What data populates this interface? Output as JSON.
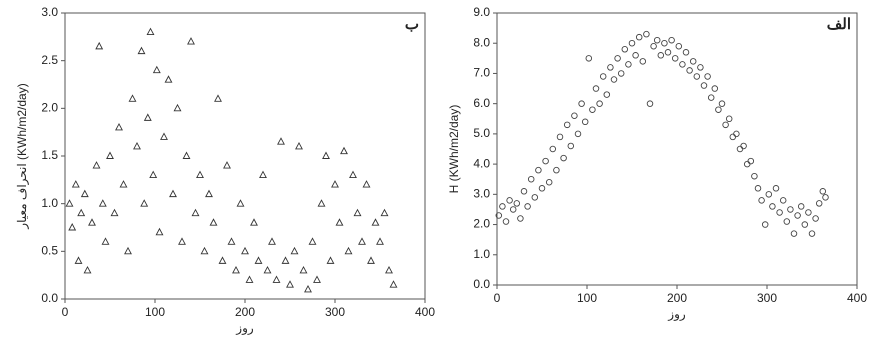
{
  "chart_data": [
    {
      "type": "scatter",
      "title": "ب",
      "x_label": "روز",
      "y_label": "انحراف معیار (KWh/m2/day)",
      "marker": "triangle",
      "color": "#333333",
      "xlim": [
        0,
        400
      ],
      "ylim": [
        0,
        3.0
      ],
      "xticks": [
        0,
        100,
        200,
        300,
        400
      ],
      "yticks": [
        {
          "value": 0,
          "label": "0.0"
        },
        0.5,
        {
          "value": 1,
          "label": "1.0"
        },
        1.5,
        {
          "value": 2,
          "label": "2.0"
        },
        2.5,
        {
          "value": 3,
          "label": "3.0"
        }
      ],
      "x": [
        5,
        8,
        12,
        15,
        18,
        22,
        25,
        30,
        35,
        38,
        42,
        45,
        50,
        55,
        60,
        65,
        70,
        75,
        80,
        85,
        88,
        92,
        95,
        98,
        102,
        105,
        110,
        115,
        120,
        125,
        130,
        135,
        140,
        145,
        150,
        155,
        160,
        165,
        170,
        175,
        180,
        185,
        190,
        195,
        200,
        205,
        210,
        215,
        220,
        225,
        230,
        235,
        240,
        245,
        250,
        255,
        260,
        265,
        270,
        275,
        280,
        285,
        290,
        295,
        300,
        305,
        310,
        315,
        320,
        325,
        330,
        335,
        340,
        345,
        350,
        355,
        360,
        365
      ],
      "values": [
        1.0,
        0.75,
        1.2,
        0.4,
        0.9,
        1.1,
        0.3,
        0.8,
        1.4,
        2.65,
        1.0,
        0.6,
        1.5,
        0.9,
        1.8,
        1.2,
        0.5,
        2.1,
        1.6,
        2.6,
        1.0,
        1.9,
        2.8,
        1.3,
        2.4,
        0.7,
        1.7,
        2.3,
        1.1,
        2.0,
        0.6,
        1.5,
        2.7,
        0.9,
        1.3,
        0.5,
        1.1,
        0.8,
        2.1,
        0.4,
        1.4,
        0.6,
        0.3,
        1.0,
        0.5,
        0.2,
        0.8,
        0.4,
        1.3,
        0.3,
        0.6,
        0.2,
        1.65,
        0.4,
        0.15,
        0.5,
        1.6,
        0.3,
        0.1,
        0.6,
        0.2,
        1.0,
        1.5,
        0.4,
        1.2,
        0.8,
        1.55,
        0.5,
        1.3,
        0.9,
        0.6,
        1.2,
        0.4,
        0.8,
        0.6,
        0.9,
        0.3,
        0.15
      ]
    },
    {
      "type": "scatter",
      "title": "الف",
      "x_label": "روز",
      "y_label": "H (KWh/m2/day)",
      "marker": "circle",
      "color": "#444444",
      "xlim": [
        0,
        400
      ],
      "ylim": [
        0,
        9.0
      ],
      "xticks": [
        0,
        100,
        200,
        300,
        400
      ],
      "yticks": [
        {
          "value": 0,
          "label": "0.0"
        },
        {
          "value": 1,
          "label": "1.0"
        },
        {
          "value": 2,
          "label": "2.0"
        },
        {
          "value": 3,
          "label": "3.0"
        },
        {
          "value": 4,
          "label": "4.0"
        },
        {
          "value": 5,
          "label": "5.0"
        },
        {
          "value": 6,
          "label": "6.0"
        },
        {
          "value": 7,
          "label": "7.0"
        },
        {
          "value": 8,
          "label": "8.0"
        },
        {
          "value": 9,
          "label": "9.0"
        }
      ],
      "x": [
        2,
        6,
        10,
        14,
        18,
        22,
        26,
        30,
        34,
        38,
        42,
        46,
        50,
        54,
        58,
        62,
        66,
        70,
        74,
        78,
        82,
        86,
        90,
        94,
        98,
        102,
        106,
        110,
        114,
        118,
        122,
        126,
        130,
        134,
        138,
        142,
        146,
        150,
        154,
        158,
        162,
        166,
        170,
        174,
        178,
        182,
        186,
        190,
        194,
        198,
        202,
        206,
        210,
        214,
        218,
        222,
        226,
        230,
        234,
        238,
        242,
        246,
        250,
        254,
        258,
        262,
        266,
        270,
        274,
        278,
        282,
        286,
        290,
        294,
        298,
        302,
        306,
        310,
        314,
        318,
        322,
        326,
        330,
        334,
        338,
        342,
        346,
        350,
        354,
        358,
        362,
        365
      ],
      "values": [
        2.3,
        2.6,
        2.1,
        2.8,
        2.5,
        2.7,
        2.2,
        3.1,
        2.6,
        3.5,
        2.9,
        3.8,
        3.2,
        4.1,
        3.4,
        4.5,
        3.8,
        4.9,
        4.2,
        5.3,
        4.6,
        5.6,
        5.0,
        6.0,
        5.4,
        7.5,
        5.8,
        6.5,
        6.0,
        6.9,
        6.3,
        7.2,
        6.8,
        7.5,
        7.0,
        7.8,
        7.3,
        8.0,
        7.6,
        8.2,
        7.4,
        8.3,
        6.0,
        7.9,
        8.1,
        7.6,
        8.0,
        7.7,
        8.1,
        7.5,
        7.9,
        7.3,
        7.7,
        7.1,
        7.4,
        6.9,
        7.2,
        6.6,
        6.9,
        6.2,
        6.5,
        5.8,
        6.0,
        5.3,
        5.5,
        4.9,
        5.0,
        4.5,
        4.6,
        4.0,
        4.1,
        3.6,
        3.2,
        2.8,
        2.0,
        3.0,
        2.6,
        3.2,
        2.4,
        2.8,
        2.1,
        2.5,
        1.7,
        2.3,
        2.6,
        2.0,
        2.4,
        1.7,
        2.2,
        2.7,
        3.1,
        2.9
      ]
    }
  ]
}
